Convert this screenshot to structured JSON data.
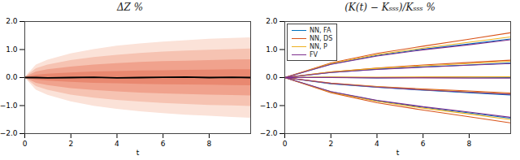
{
  "chart_data": [
    {
      "type": "fan",
      "title": "ΔZ %",
      "xlabel": "t",
      "x": [
        0,
        0.5,
        1,
        2,
        3,
        4,
        5,
        6,
        7,
        8,
        9,
        9.8
      ],
      "xlim": [
        0,
        9.8
      ],
      "xticks": [
        0,
        2,
        4,
        6,
        8
      ],
      "ylim": [
        -2,
        2
      ],
      "yticks": [
        -2,
        -1,
        0,
        1,
        2
      ],
      "grid": false,
      "bands": [
        {
          "color": "#fbe2d8",
          "lower": [
            0,
            -0.45,
            -0.63,
            -0.86,
            -1.02,
            -1.13,
            -1.22,
            -1.28,
            -1.34,
            -1.38,
            -1.42,
            -1.45
          ],
          "upper": [
            0,
            0.45,
            0.62,
            0.85,
            1.0,
            1.12,
            1.2,
            1.27,
            1.32,
            1.37,
            1.4,
            1.42
          ]
        },
        {
          "color": "#f6c3b2",
          "lower": [
            0,
            -0.32,
            -0.45,
            -0.62,
            -0.73,
            -0.81,
            -0.87,
            -0.92,
            -0.96,
            -0.99,
            -1.01,
            -1.03
          ],
          "upper": [
            0,
            0.32,
            0.45,
            0.61,
            0.72,
            0.8,
            0.86,
            0.91,
            0.95,
            0.98,
            1.0,
            1.02
          ]
        },
        {
          "color": "#f0a28d",
          "lower": [
            0,
            -0.2,
            -0.28,
            -0.39,
            -0.46,
            -0.51,
            -0.55,
            -0.58,
            -0.6,
            -0.62,
            -0.64,
            -0.65
          ],
          "upper": [
            0,
            0.2,
            0.28,
            0.38,
            0.45,
            0.5,
            0.54,
            0.57,
            0.59,
            0.61,
            0.63,
            0.64
          ]
        },
        {
          "color": "#e98870",
          "lower": [
            0,
            -0.09,
            -0.12,
            -0.17,
            -0.2,
            -0.22,
            -0.24,
            -0.25,
            -0.26,
            -0.27,
            -0.28,
            -0.29
          ],
          "upper": [
            0,
            0.09,
            0.12,
            0.17,
            0.2,
            0.22,
            0.24,
            0.25,
            0.26,
            0.27,
            0.28,
            0.28
          ]
        }
      ],
      "median": {
        "color": "#000000",
        "values": [
          0,
          0,
          -0.01,
          0,
          0.01,
          -0.01,
          0,
          0.01,
          0.02,
          0,
          0.01,
          0
        ]
      }
    },
    {
      "type": "line",
      "title": "(K(t) − Kₛₛₛ)/Kₛₛₛ %",
      "xlabel": "t",
      "x": [
        0,
        2,
        4,
        6,
        8,
        9.8
      ],
      "xlim": [
        0,
        9.8
      ],
      "xticks": [
        0,
        2,
        4,
        6,
        8
      ],
      "ylim": [
        -2,
        2
      ],
      "yticks": [
        -2,
        -1,
        0,
        1,
        2
      ],
      "grid": false,
      "legend": "upper left",
      "series": [
        {
          "name": "NN, FA",
          "color": "#0072bd",
          "paths": [
            [
              0,
              0.48,
              0.79,
              1.01,
              1.2,
              1.38
            ],
            [
              0,
              0.18,
              0.3,
              0.38,
              0.45,
              0.52
            ],
            [
              0,
              0.01,
              -0.01,
              0,
              0.01,
              0
            ],
            [
              0,
              -0.22,
              -0.35,
              -0.45,
              -0.54,
              -0.62
            ],
            [
              0,
              -0.51,
              -0.83,
              -1.06,
              -1.26,
              -1.45
            ]
          ]
        },
        {
          "name": "NN, DS",
          "color": "#d95319",
          "paths": [
            [
              0,
              0.52,
              0.86,
              1.12,
              1.37,
              1.6
            ],
            [
              0,
              0.2,
              0.34,
              0.45,
              0.54,
              0.62
            ],
            [
              0,
              0.01,
              0,
              0.01,
              0.02,
              0.02
            ],
            [
              0,
              -0.2,
              -0.32,
              -0.41,
              -0.48,
              -0.55
            ],
            [
              0,
              -0.54,
              -0.9,
              -1.16,
              -1.4,
              -1.62
            ]
          ]
        },
        {
          "name": "NN, P",
          "color": "#edb120",
          "paths": [
            [
              0,
              0.5,
              0.82,
              1.05,
              1.26,
              1.45
            ],
            [
              0,
              0.2,
              0.33,
              0.42,
              0.5,
              0.58
            ],
            [
              0,
              0.01,
              0.01,
              0.02,
              0.02,
              0.03
            ],
            [
              0,
              -0.21,
              -0.33,
              -0.43,
              -0.51,
              -0.58
            ],
            [
              0,
              -0.52,
              -0.85,
              -1.09,
              -1.3,
              -1.5
            ]
          ]
        },
        {
          "name": "FV",
          "color": "#7e2f8e",
          "paths": [
            [
              0,
              0.47,
              0.77,
              0.99,
              1.17,
              1.35
            ],
            [
              0,
              0.18,
              0.29,
              0.37,
              0.44,
              0.5
            ],
            [
              0,
              0,
              -0.01,
              -0.01,
              -0.02,
              -0.02
            ],
            [
              0,
              -0.21,
              -0.34,
              -0.44,
              -0.52,
              -0.6
            ],
            [
              0,
              -0.5,
              -0.81,
              -1.04,
              -1.23,
              -1.42
            ]
          ]
        }
      ]
    }
  ]
}
